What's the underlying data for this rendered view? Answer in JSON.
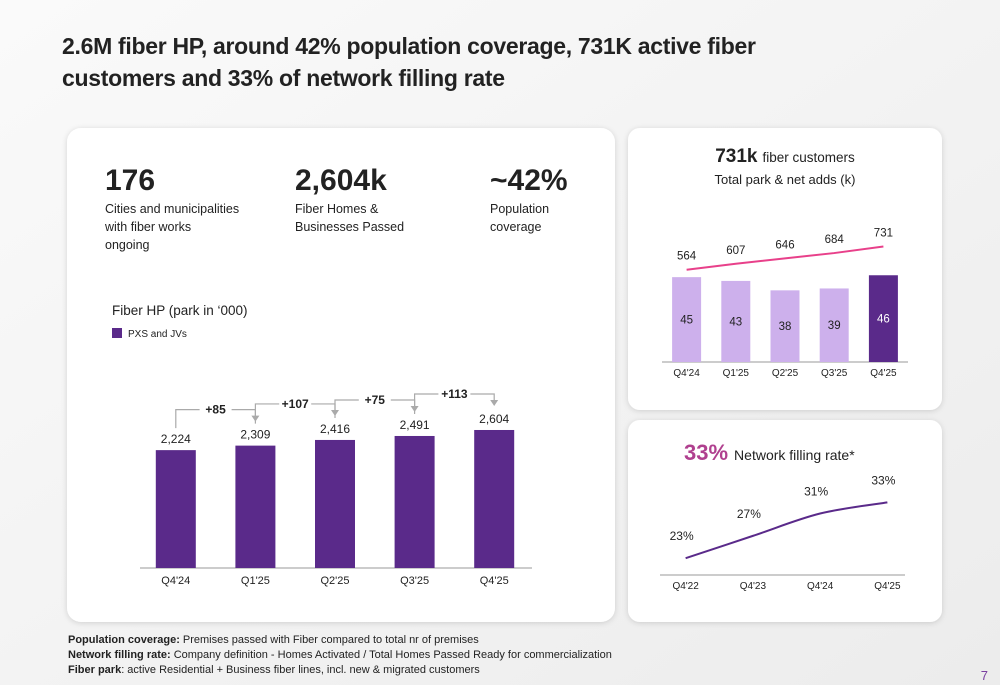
{
  "title_lines": [
    "2.6M fiber HP, around 42% population coverage, 731K active fiber",
    "customers and 33% of network filling rate"
  ],
  "kpis": [
    {
      "value": "176",
      "label_lines": [
        "Cities and municipalities",
        "with fiber works",
        "ongoing"
      ],
      "color": "#a8409a"
    },
    {
      "value": "2,604k",
      "label_lines": [
        "Fiber Homes &",
        "Businesses Passed"
      ],
      "color": "#7a3fa0"
    },
    {
      "value": "~42%",
      "label_lines": [
        "Population",
        "coverage"
      ],
      "color": "#a0409c"
    }
  ],
  "chart_data": [
    {
      "type": "bar",
      "title": "Fiber HP (park in ‘000)",
      "categories": [
        "Q4'24",
        "Q1'25",
        "Q2'25",
        "Q3'25",
        "Q4'25"
      ],
      "series": [
        {
          "name": "PXS and JVs",
          "color": "#5a2a8a",
          "values": [
            2224,
            2309,
            2416,
            2491,
            2604
          ],
          "value_labels": [
            "2,224",
            "2,309",
            "2,416",
            "2,491",
            "2,604"
          ]
        }
      ],
      "net_adds_labels": [
        "+85",
        "+107",
        "+75",
        "+113"
      ],
      "ylim": [
        0,
        3000
      ]
    },
    {
      "type": "bar-line",
      "title_value": "731k",
      "title": "fiber customers",
      "subtitle": "Total park & net adds (k)",
      "categories": [
        "Q4'24",
        "Q1'25",
        "Q2'25",
        "Q3'25",
        "Q4'25"
      ],
      "series": [
        {
          "type": "bar",
          "colors": [
            "#cdb0ec",
            "#cdb0ec",
            "#cdb0ec",
            "#cdb0ec",
            "#5a2a8a"
          ],
          "values": [
            45,
            43,
            38,
            39,
            46
          ]
        },
        {
          "type": "line",
          "color": "#e8408a",
          "axis": "y2",
          "values": [
            564,
            607,
            646,
            684,
            731
          ]
        }
      ],
      "ylim": [
        0,
        70
      ],
      "y2lim": [
        -100,
        850
      ]
    },
    {
      "type": "line",
      "title_value": "33%",
      "title": "Network filling rate*",
      "categories": [
        "Q4'22",
        "Q4'23",
        "Q4'24",
        "Q4'25"
      ],
      "series": [
        {
          "color": "#5a2a8a",
          "values": [
            23,
            27,
            31,
            33
          ],
          "value_labels": [
            "23%",
            "27%",
            "31%",
            "33%"
          ]
        }
      ],
      "ylim": [
        20,
        37
      ]
    }
  ],
  "footnotes": [
    {
      "label": "Population coverage:",
      "text": "Premises passed with Fiber compared to total nr of premises"
    },
    {
      "label": "Network filling rate:",
      "text": "Company definition - Homes Activated / Total Homes Passed Ready for commercialization"
    },
    {
      "label": "Fiber park",
      "text": ": active Residential + Business fiber lines, incl. new & migrated customers"
    }
  ],
  "page_number": "7"
}
